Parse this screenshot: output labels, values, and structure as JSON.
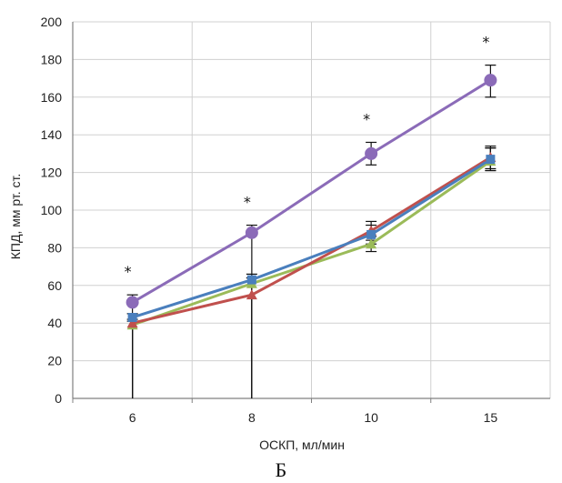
{
  "chart_data": {
    "type": "line",
    "xlabel": "ОСКП, мл/мин",
    "ylabel": "КПД, мм рт. ст.",
    "caption": "Б",
    "categories": [
      "6",
      "8",
      "10",
      "15"
    ],
    "ylim": [
      0,
      200
    ],
    "yticks": [
      0,
      20,
      40,
      60,
      80,
      100,
      120,
      140,
      160,
      180,
      200
    ],
    "grid": true,
    "significance_marker": "*",
    "significance_marked_categories": [
      "6",
      "8",
      "10",
      "15"
    ],
    "series": [
      {
        "color": "#8b6bb8",
        "marker": "circle",
        "values": [
          51,
          88,
          130,
          169
        ],
        "error_upper": [
          55,
          92,
          136,
          177
        ],
        "error_lower": [
          0,
          0,
          124,
          160
        ]
      },
      {
        "color": "#4a7fbd",
        "marker": "square",
        "values": [
          43,
          63,
          87,
          127
        ],
        "error_upper": [
          45,
          66,
          92,
          133
        ],
        "error_lower": [
          0,
          0,
          82,
          121
        ]
      },
      {
        "color": "#c0504d",
        "marker": "triangle",
        "values": [
          40,
          55,
          89,
          128
        ],
        "error_upper": [
          42,
          64,
          94,
          134
        ],
        "error_lower": [
          0,
          0,
          84,
          122
        ]
      },
      {
        "color": "#9bbb59",
        "marker": "triangle",
        "values": [
          39,
          61,
          82,
          126
        ],
        "error_upper": [
          41,
          64,
          86,
          133
        ],
        "error_lower": [
          0,
          0,
          78,
          121
        ]
      }
    ]
  }
}
